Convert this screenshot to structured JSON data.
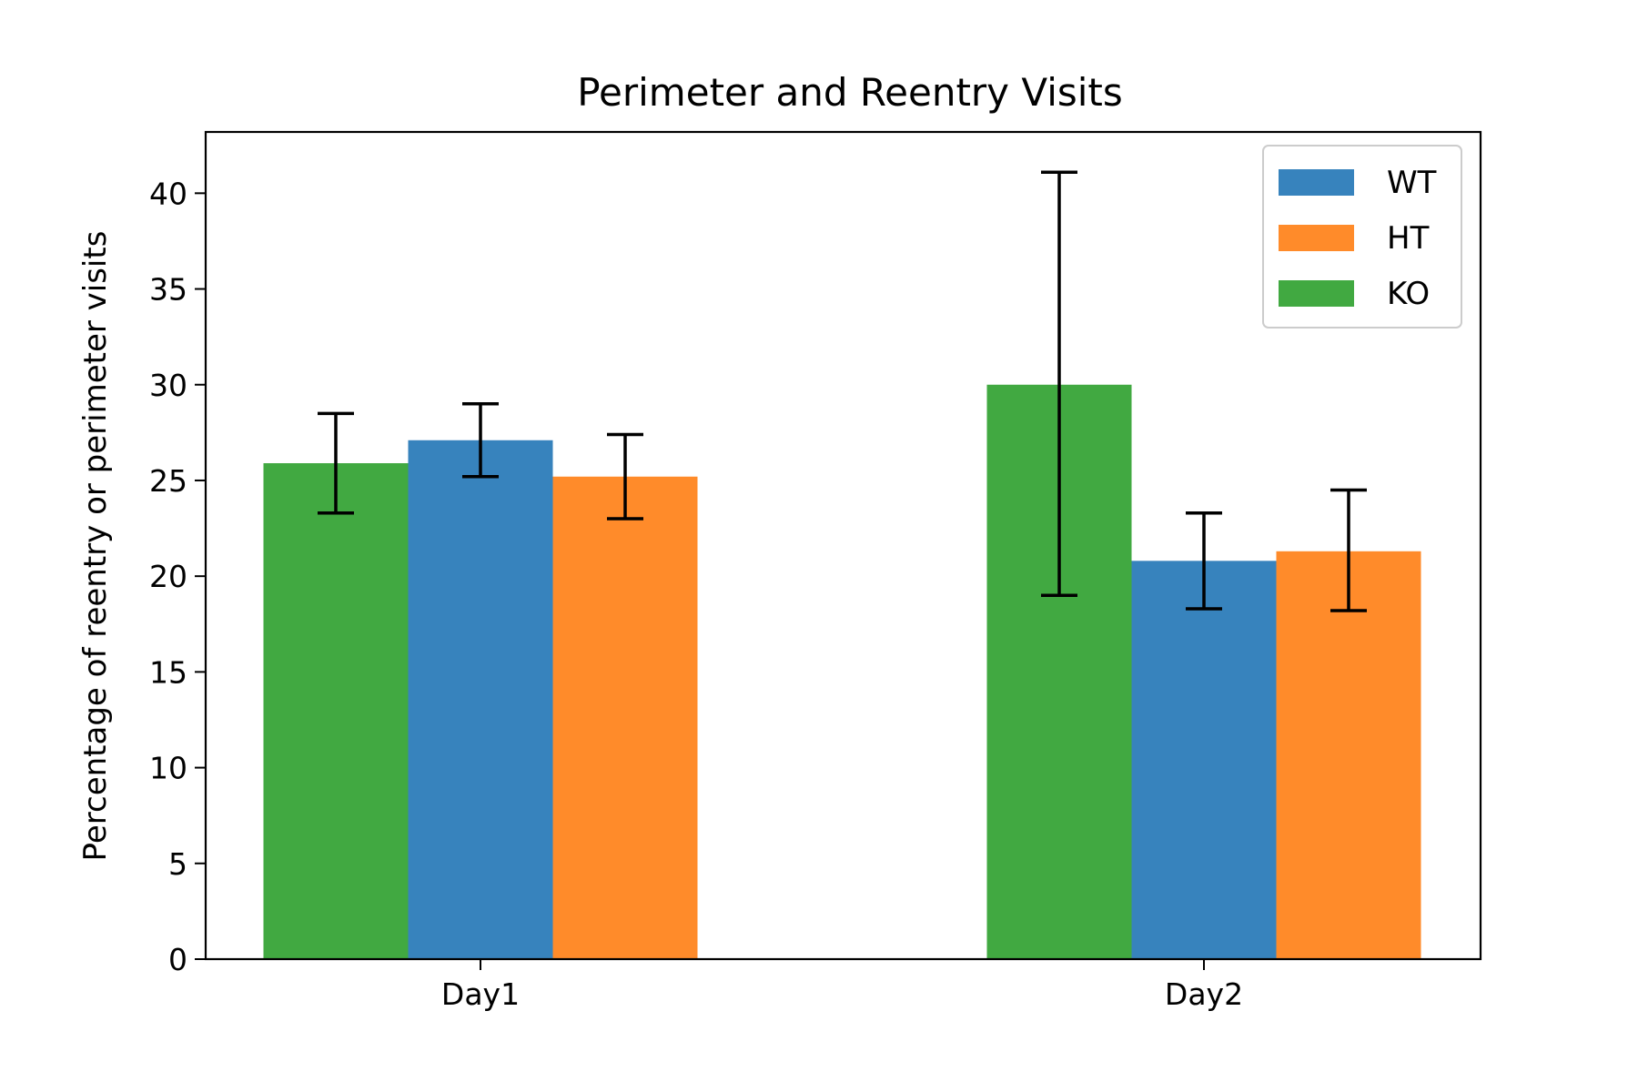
{
  "chart_data": {
    "type": "bar",
    "title": "Perimeter and Reentry Visits",
    "xlabel": "",
    "ylabel": "Percentage of reentry or perimeter visits",
    "categories": [
      "Day1",
      "Day2"
    ],
    "ylim": [
      0,
      43.2
    ],
    "yticks": [
      0,
      5,
      10,
      15,
      20,
      25,
      30,
      35,
      40
    ],
    "legend_position": "top-right",
    "grid": false,
    "series": [
      {
        "name": "KO",
        "color": "#41a941",
        "values": [
          25.9,
          30.0
        ],
        "errors": [
          [
            23.3,
            28.5
          ],
          [
            19.0,
            41.1
          ]
        ]
      },
      {
        "name": "WT",
        "color": "#3783bd",
        "values": [
          27.1,
          20.8
        ],
        "errors": [
          [
            25.2,
            29.0
          ],
          [
            18.3,
            23.3
          ]
        ]
      },
      {
        "name": "HT",
        "color": "#ff8b2a",
        "values": [
          25.2,
          21.3
        ],
        "errors": [
          [
            23.0,
            27.4
          ],
          [
            18.2,
            24.5
          ]
        ]
      }
    ],
    "legend_order": [
      "WT",
      "HT",
      "KO"
    ]
  }
}
